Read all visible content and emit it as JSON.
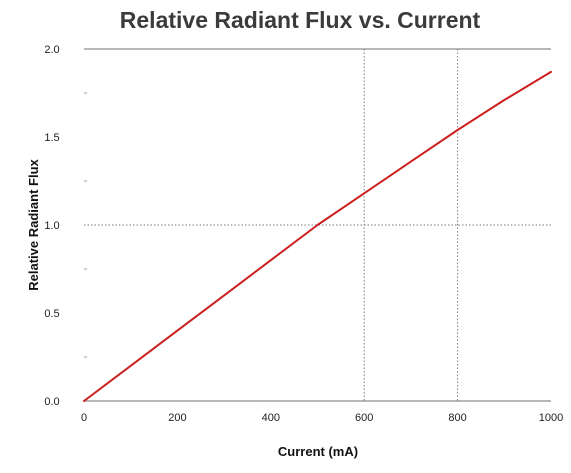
{
  "chart_data": {
    "type": "line",
    "title": "Relative Radiant Flux vs. Current",
    "xlabel": "Current (mA)",
    "ylabel": "Relative Radiant Flux",
    "xlim": [
      0,
      1000
    ],
    "ylim": [
      0,
      2.0
    ],
    "x_ticks": [
      0,
      200,
      400,
      600,
      800,
      1000
    ],
    "x_tick_labels": [
      "0",
      "200",
      "400",
      "600",
      "800",
      "1000"
    ],
    "y_ticks": [
      0,
      0.5,
      1.0,
      1.5,
      2.0
    ],
    "y_tick_labels": [
      "0.0",
      "0.5",
      "1.0",
      "1.5",
      "2.0"
    ],
    "y_minor_ticks": [
      0.25,
      0.75,
      1.25,
      1.75
    ],
    "x_gridlines": [
      600,
      800
    ],
    "y_gridlines": [
      1.0
    ],
    "grid": "partial-dotted",
    "legend": "none",
    "series": [
      {
        "color": "#cc1f1f",
        "x": [
          0,
          100,
          200,
          300,
          400,
          500,
          600,
          700,
          800,
          900,
          1000
        ],
        "y": [
          0.0,
          0.2,
          0.4,
          0.6,
          0.8,
          1.0,
          1.18,
          1.36,
          1.54,
          1.71,
          1.87
        ]
      }
    ]
  }
}
